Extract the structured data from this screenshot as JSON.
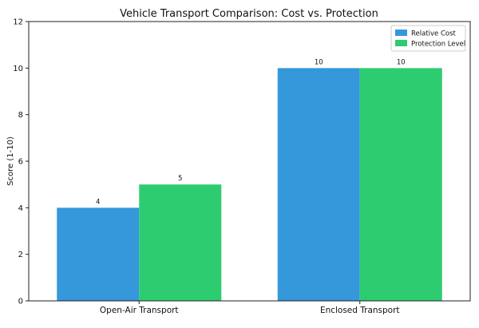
{
  "chart_data": {
    "type": "bar",
    "title": "Vehicle Transport Comparison: Cost vs. Protection",
    "xlabel": "",
    "ylabel": "Score (1-10)",
    "ylim": [
      0,
      12
    ],
    "yticks": [
      0,
      2,
      4,
      6,
      8,
      10,
      12
    ],
    "categories": [
      "Open-Air Transport",
      "Enclosed Transport"
    ],
    "series": [
      {
        "name": "Relative Cost",
        "values": [
          4,
          10
        ],
        "color": "#3498db"
      },
      {
        "name": "Protection Level",
        "values": [
          5,
          10
        ],
        "color": "#2ecc71"
      }
    ],
    "data_labels": [
      [
        "4",
        "10"
      ],
      [
        "5",
        "10"
      ]
    ],
    "legend_position": "top-right",
    "grid": false
  }
}
